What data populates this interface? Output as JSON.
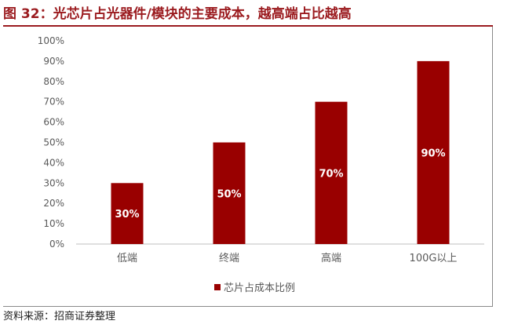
{
  "figure": {
    "title": "图 32：光芯片占光器件/模块的主要成本，越高端占比越高",
    "source": "资料来源：招商证券整理"
  },
  "colors": {
    "title": "#9b1b1f",
    "bar": "#990000",
    "bar_label": "#ffffff",
    "axis_text": "#595959",
    "axis_line": "#bfbfbf"
  },
  "chart_data": {
    "type": "bar",
    "title": "",
    "xlabel": "",
    "ylabel": "",
    "categories": [
      "低端",
      "终端",
      "高端",
      "100G以上"
    ],
    "series": [
      {
        "name": "芯片占成本比例",
        "values": [
          30,
          50,
          70,
          90
        ]
      }
    ],
    "data_labels": [
      "30%",
      "50%",
      "70%",
      "90%"
    ],
    "y_ticks": [
      "0%",
      "10%",
      "20%",
      "30%",
      "40%",
      "50%",
      "60%",
      "70%",
      "80%",
      "90%",
      "100%"
    ],
    "ylim": [
      0,
      100
    ],
    "grid": false,
    "legend_position": "bottom-center"
  }
}
